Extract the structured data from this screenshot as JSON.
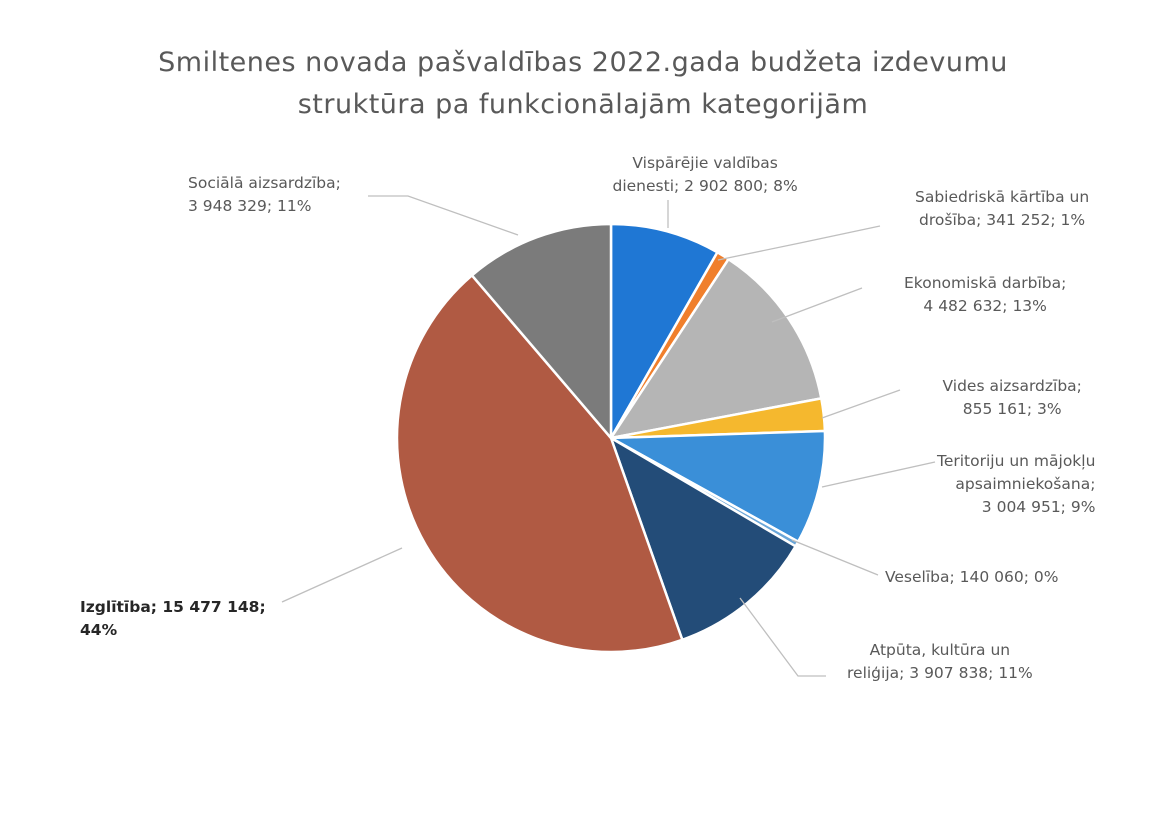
{
  "chart_data": {
    "type": "pie",
    "title": [
      "Smiltenes novada pašvaldības 2022.gada budžeta izdevumu",
      "struktūra pa funkcionālajām kategorijām"
    ],
    "start_angle_deg": 0,
    "slices": [
      {
        "name": "Vispārējie valdības dienesti",
        "value": 2902800,
        "percent": 8,
        "color": "#1f77d4",
        "label": [
          "Vispārējie valdības",
          "dienesti; 2 902 800; 8%"
        ]
      },
      {
        "name": "Sabiedriskā kārtība un drošība",
        "value": 341252,
        "percent": 1,
        "color": "#f07f2c",
        "label": [
          "Sabiedriskā kārtība un",
          "drošība; 341 252; 1%"
        ]
      },
      {
        "name": "Ekonomiskā darbība",
        "value": 4482632,
        "percent": 13,
        "color": "#b5b5b5",
        "label": [
          "Ekonomiskā darbība;",
          "4 482 632; 13%"
        ]
      },
      {
        "name": "Vides aizsardzība",
        "value": 855161,
        "percent": 3,
        "color": "#f5b82e",
        "label": [
          "Vides aizsardzība;",
          "855 161; 3%"
        ]
      },
      {
        "name": "Teritoriju un mājokļu apsaimniekošana",
        "value": 3004951,
        "percent": 9,
        "color": "#3a8fd8",
        "label": [
          "Teritoriju un mājokļu",
          "apsaimniekošana;",
          "3 004 951; 9%"
        ]
      },
      {
        "name": "Veselība",
        "value": 140060,
        "percent": 0,
        "color": "#6aa6d8",
        "label": [
          "Veselība; 140 060; 0%"
        ]
      },
      {
        "name": "Atpūta, kultūra un reliģija",
        "value": 3907838,
        "percent": 11,
        "color": "#234c78",
        "label": [
          "Atpūta, kultūra un",
          "reliģija; 3 907 838; 11%"
        ]
      },
      {
        "name": "Izglītība",
        "value": 15477148,
        "percent": 44,
        "color": "#b05a43",
        "label": [
          "Izglītība; 15 477 148;",
          "44%"
        ]
      },
      {
        "name": "Sociālā aizsardzība",
        "value": 3948329,
        "percent": 11,
        "color": "#7b7b7b",
        "label": [
          "Sociālā aizsardzība;",
          "3 948 329; 11%"
        ]
      }
    ]
  }
}
